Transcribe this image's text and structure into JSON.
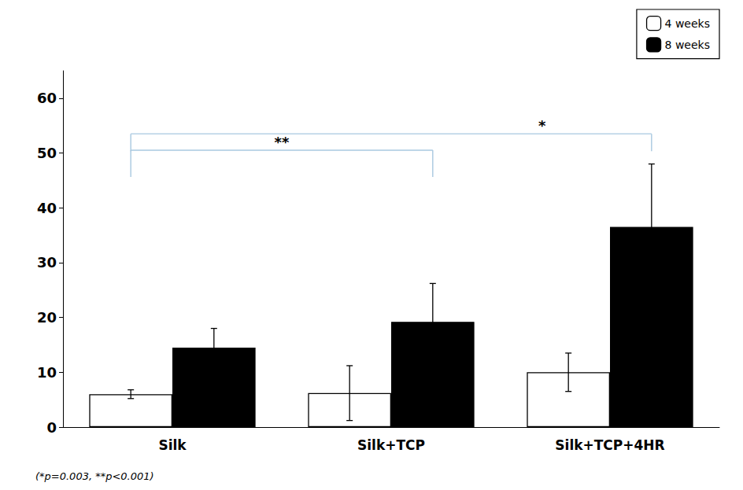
{
  "chart_data": {
    "type": "bar",
    "categories": [
      "Silk",
      "Silk+TCP",
      "Silk+TCP+4HR"
    ],
    "series": [
      {
        "name": "4 weeks",
        "color": "#ffffff",
        "values": [
          6.0,
          6.2,
          10.0
        ],
        "errors": [
          0.8,
          5.0,
          3.5
        ]
      },
      {
        "name": "8 weeks",
        "color": "#000000",
        "values": [
          14.5,
          19.2,
          36.5
        ],
        "errors": [
          3.5,
          7.0,
          11.5
        ]
      }
    ],
    "ylim": [
      0,
      65
    ],
    "yticks": [
      0,
      10,
      20,
      30,
      40,
      50,
      60
    ],
    "grid": false,
    "legend": "upper right",
    "annotations": [
      {
        "text": "**",
        "y": 50.5,
        "color": "#a8c8e0",
        "from": {
          "category": "Silk",
          "series": "4 weeks"
        },
        "to": {
          "category": "Silk+TCP",
          "series": "8 weeks"
        }
      },
      {
        "text": "*",
        "y": 53.5,
        "color": "#a8c8e0",
        "from": {
          "category": "Silk",
          "series": "4 weeks"
        },
        "to": {
          "category": "Silk+TCP+4HR",
          "series": "8 weeks"
        }
      }
    ],
    "footnote": "(*p=0.003, **p<0.001)"
  }
}
